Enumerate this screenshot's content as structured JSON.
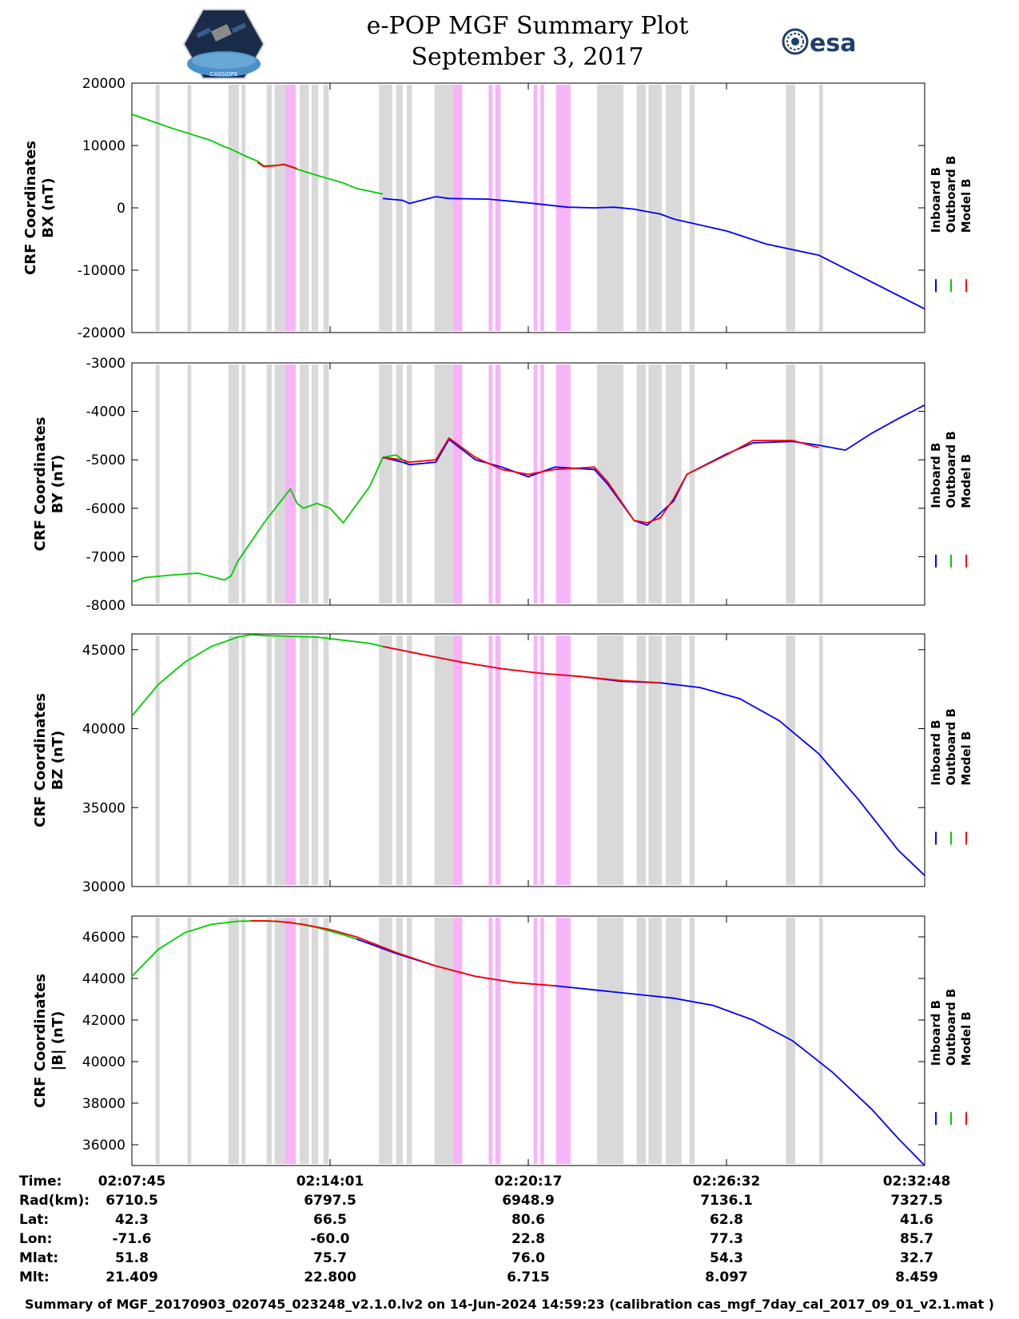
{
  "header": {
    "title_line1": "e-POP MGF Summary Plot",
    "title_line2": "September 3, 2017",
    "left_logo_text": "CASSIOPE",
    "right_logo_text": "esa"
  },
  "colors": {
    "inboard": "#0000ff",
    "outboard": "#00cc00",
    "model": "#ff0000",
    "gray_band": "#d9d9d9",
    "pink_band": "#f8b4f8"
  },
  "chart_data": [
    {
      "type": "line",
      "id": "bx",
      "ylabel": [
        "CRF Coordinates",
        "BX (nT)"
      ],
      "ylim": [
        -20000,
        20000
      ],
      "yticks": [
        20000,
        10000,
        0,
        -10000,
        -20000
      ],
      "legend": [
        "Inboard B",
        "Outboard B",
        "Model B"
      ],
      "x_unit": "minutes since 02:07:45",
      "series": [
        {
          "name": "Outboard B",
          "color": "#00cc00",
          "x": [
            0,
            3,
            6,
            7,
            7.3,
            8,
            8.5,
            9.5,
            10,
            11.5,
            12.5,
            14,
            16,
            17,
            19
          ],
          "values": [
            15000,
            12800,
            10800,
            9800,
            9600,
            8900,
            8400,
            7500,
            6700,
            6900,
            6200,
            5200,
            4000,
            3100,
            2200
          ]
        },
        {
          "name": "Inboard B",
          "color": "#0000ff",
          "x": [
            19,
            20.5,
            21,
            23,
            24,
            27,
            30,
            33,
            35,
            36.5,
            38,
            40,
            41,
            45,
            48,
            52,
            60
          ],
          "values": [
            1500,
            1200,
            700,
            1800,
            1500,
            1400,
            800,
            100,
            0,
            100,
            -200,
            -1000,
            -1800,
            -3700,
            -5800,
            -7600,
            -16200
          ]
        },
        {
          "name": "Model B",
          "color": "#ff0000",
          "x": [
            9.5,
            10,
            11,
            11.5,
            12.5
          ],
          "values": [
            7300,
            6600,
            6800,
            7000,
            6300
          ]
        }
      ]
    },
    {
      "type": "line",
      "id": "by",
      "ylabel": [
        "CRF Coordinates",
        "BY (nT)"
      ],
      "ylim": [
        -8000,
        -3000
      ],
      "yticks": [
        -3000,
        -4000,
        -5000,
        -6000,
        -7000,
        -8000
      ],
      "legend": [
        "Inboard B",
        "Outboard B",
        "Model B"
      ],
      "x_unit": "minutes since 02:07:45",
      "series": [
        {
          "name": "Outboard B",
          "color": "#00cc00",
          "x": [
            0,
            1,
            3,
            5,
            7,
            7.5,
            8,
            10,
            12,
            12.5,
            13,
            14,
            15,
            16,
            18,
            19,
            20,
            20.5,
            21
          ],
          "values": [
            -7520,
            -7430,
            -7380,
            -7340,
            -7480,
            -7400,
            -7100,
            -6300,
            -5600,
            -5900,
            -6000,
            -5900,
            -6000,
            -6300,
            -5550,
            -4950,
            -4900,
            -5000,
            -5100
          ]
        },
        {
          "name": "Inboard B",
          "color": "#0000ff",
          "x": [
            19,
            20.5,
            21,
            23,
            24,
            26,
            28,
            30,
            32,
            35,
            36,
            38,
            39,
            41,
            42,
            45,
            47,
            50,
            52,
            54,
            56,
            58,
            60
          ],
          "values": [
            -4950,
            -5050,
            -5100,
            -5050,
            -4580,
            -5000,
            -5150,
            -5350,
            -5150,
            -5200,
            -5500,
            -6250,
            -6350,
            -5850,
            -5300,
            -4880,
            -4650,
            -4620,
            -4700,
            -4800,
            -4450,
            -4150,
            -3870
          ]
        },
        {
          "name": "Model B",
          "color": "#ff0000",
          "x": [
            19,
            20.5,
            21,
            23,
            24,
            26,
            28,
            30,
            32,
            35,
            36,
            38,
            39,
            40,
            41,
            42,
            45,
            47,
            50,
            52
          ],
          "values": [
            -4950,
            -5000,
            -5050,
            -5000,
            -4550,
            -4950,
            -5200,
            -5300,
            -5200,
            -5150,
            -5450,
            -6250,
            -6300,
            -6200,
            -5800,
            -5300,
            -4900,
            -4600,
            -4600,
            -4750
          ]
        }
      ]
    },
    {
      "type": "line",
      "id": "bz",
      "ylabel": [
        "CRF Coordinates",
        "BZ (nT)"
      ],
      "ylim": [
        30000,
        46000
      ],
      "yticks": [
        45000,
        40000,
        35000,
        30000
      ],
      "legend": [
        "Inboard B",
        "Outboard B",
        "Model B"
      ],
      "x_unit": "minutes since 02:07:45",
      "series": [
        {
          "name": "Outboard B",
          "color": "#00cc00",
          "x": [
            0,
            2,
            4,
            6,
            8,
            9,
            10,
            12,
            14,
            16,
            18,
            19
          ],
          "values": [
            40800,
            42800,
            44200,
            45200,
            45800,
            45950,
            45900,
            45850,
            45800,
            45600,
            45400,
            45200
          ]
        },
        {
          "name": "Inboard B",
          "color": "#0000ff",
          "x": [
            19,
            22,
            25,
            28,
            31,
            34,
            37,
            40,
            43,
            46,
            49,
            52,
            55,
            58,
            60
          ],
          "values": [
            45200,
            44700,
            44200,
            43800,
            43500,
            43300,
            43000,
            42900,
            42600,
            41900,
            40500,
            38400,
            35500,
            32300,
            30700
          ]
        },
        {
          "name": "Model B",
          "color": "#ff0000",
          "x": [
            19,
            22,
            25,
            28,
            31,
            34,
            37,
            40
          ],
          "values": [
            45200,
            44700,
            44200,
            43800,
            43500,
            43300,
            43050,
            42900
          ]
        }
      ]
    },
    {
      "type": "line",
      "id": "bmag",
      "ylabel": [
        "CRF Coordinates",
        "|B| (nT)"
      ],
      "ylim": [
        35000,
        47000
      ],
      "yticks": [
        46000,
        44000,
        42000,
        40000,
        38000,
        36000
      ],
      "legend": [
        "Inboard B",
        "Outboard B",
        "Model B"
      ],
      "x_unit": "minutes since 02:07:45",
      "series": [
        {
          "name": "Outboard B",
          "color": "#00cc00",
          "x": [
            0,
            2,
            4,
            6,
            8,
            10,
            12,
            14,
            16,
            17
          ],
          "values": [
            44100,
            45400,
            46200,
            46600,
            46750,
            46780,
            46700,
            46450,
            46100,
            45900
          ]
        },
        {
          "name": "Inboard B",
          "color": "#0000ff",
          "x": [
            17,
            20,
            23,
            26,
            29,
            32,
            35,
            38,
            41,
            44,
            47,
            50,
            53,
            56,
            58,
            60
          ],
          "values": [
            45900,
            45200,
            44600,
            44100,
            43800,
            43650,
            43450,
            43250,
            43050,
            42700,
            42000,
            41000,
            39500,
            37700,
            36300,
            35000
          ]
        },
        {
          "name": "Model B",
          "color": "#ff0000",
          "x": [
            9,
            11,
            13,
            15,
            17,
            20,
            23,
            26,
            29,
            32
          ],
          "values": [
            46780,
            46750,
            46600,
            46350,
            46000,
            45250,
            44600,
            44100,
            43800,
            43650
          ]
        }
      ]
    }
  ],
  "shaded_intervals_minutes": {
    "gray": [
      [
        1.8,
        2.1
      ],
      [
        4.2,
        4.5
      ],
      [
        7.3,
        8.1
      ],
      [
        8.3,
        8.6
      ],
      [
        10.2,
        10.6
      ],
      [
        10.8,
        11.8
      ],
      [
        11.8,
        12.3
      ],
      [
        12.7,
        13.4
      ],
      [
        13.6,
        14.1
      ],
      [
        14.5,
        14.9
      ],
      [
        18.7,
        19.7
      ],
      [
        20.0,
        20.5
      ],
      [
        20.8,
        21.2
      ],
      [
        22.9,
        24.3
      ],
      [
        35.2,
        36.2
      ],
      [
        36.2,
        37.2
      ],
      [
        38.2,
        38.9
      ],
      [
        39.1,
        40.1
      ],
      [
        40.4,
        41.6
      ],
      [
        42.2,
        42.6
      ],
      [
        49.5,
        50.0
      ],
      [
        49.9,
        50.2
      ],
      [
        52.0,
        52.3
      ]
    ],
    "pink": [
      [
        11.6,
        12.4
      ],
      [
        24.3,
        25.0
      ],
      [
        27.0,
        27.3
      ],
      [
        27.5,
        27.9
      ],
      [
        30.4,
        30.7
      ],
      [
        30.9,
        31.2
      ],
      [
        32.1,
        33.2
      ]
    ]
  },
  "x_axis": {
    "range_minutes": [
      0,
      60
    ],
    "tick_minutes": [
      0,
      15,
      30,
      45,
      60
    ]
  },
  "footer": {
    "rows": [
      {
        "label": "Time:",
        "values": [
          "02:07:45",
          "02:14:01",
          "02:20:17",
          "02:26:32",
          "02:32:48"
        ]
      },
      {
        "label": "Rad(km):",
        "values": [
          "6710.5",
          "6797.5",
          "6948.9",
          "7136.1",
          "7327.5"
        ]
      },
      {
        "label": "Lat:",
        "values": [
          "42.3",
          "66.5",
          "80.6",
          "62.8",
          "41.6"
        ]
      },
      {
        "label": "Lon:",
        "values": [
          "-71.6",
          "-60.0",
          "22.8",
          "77.3",
          "85.7"
        ]
      },
      {
        "label": "Mlat:",
        "values": [
          "51.8",
          "75.7",
          "76.0",
          "54.3",
          "32.7"
        ]
      },
      {
        "label": "Mlt:",
        "values": [
          "21.409",
          "22.800",
          "6.715",
          "8.097",
          "8.459"
        ]
      }
    ],
    "caption": "Summary of MGF_20170903_020745_023248_v2.1.0.lv2 on 14-Jun-2024 14:59:23 (calibration cas_mgf_7day_cal_2017_09_01_v2.1.mat )"
  }
}
